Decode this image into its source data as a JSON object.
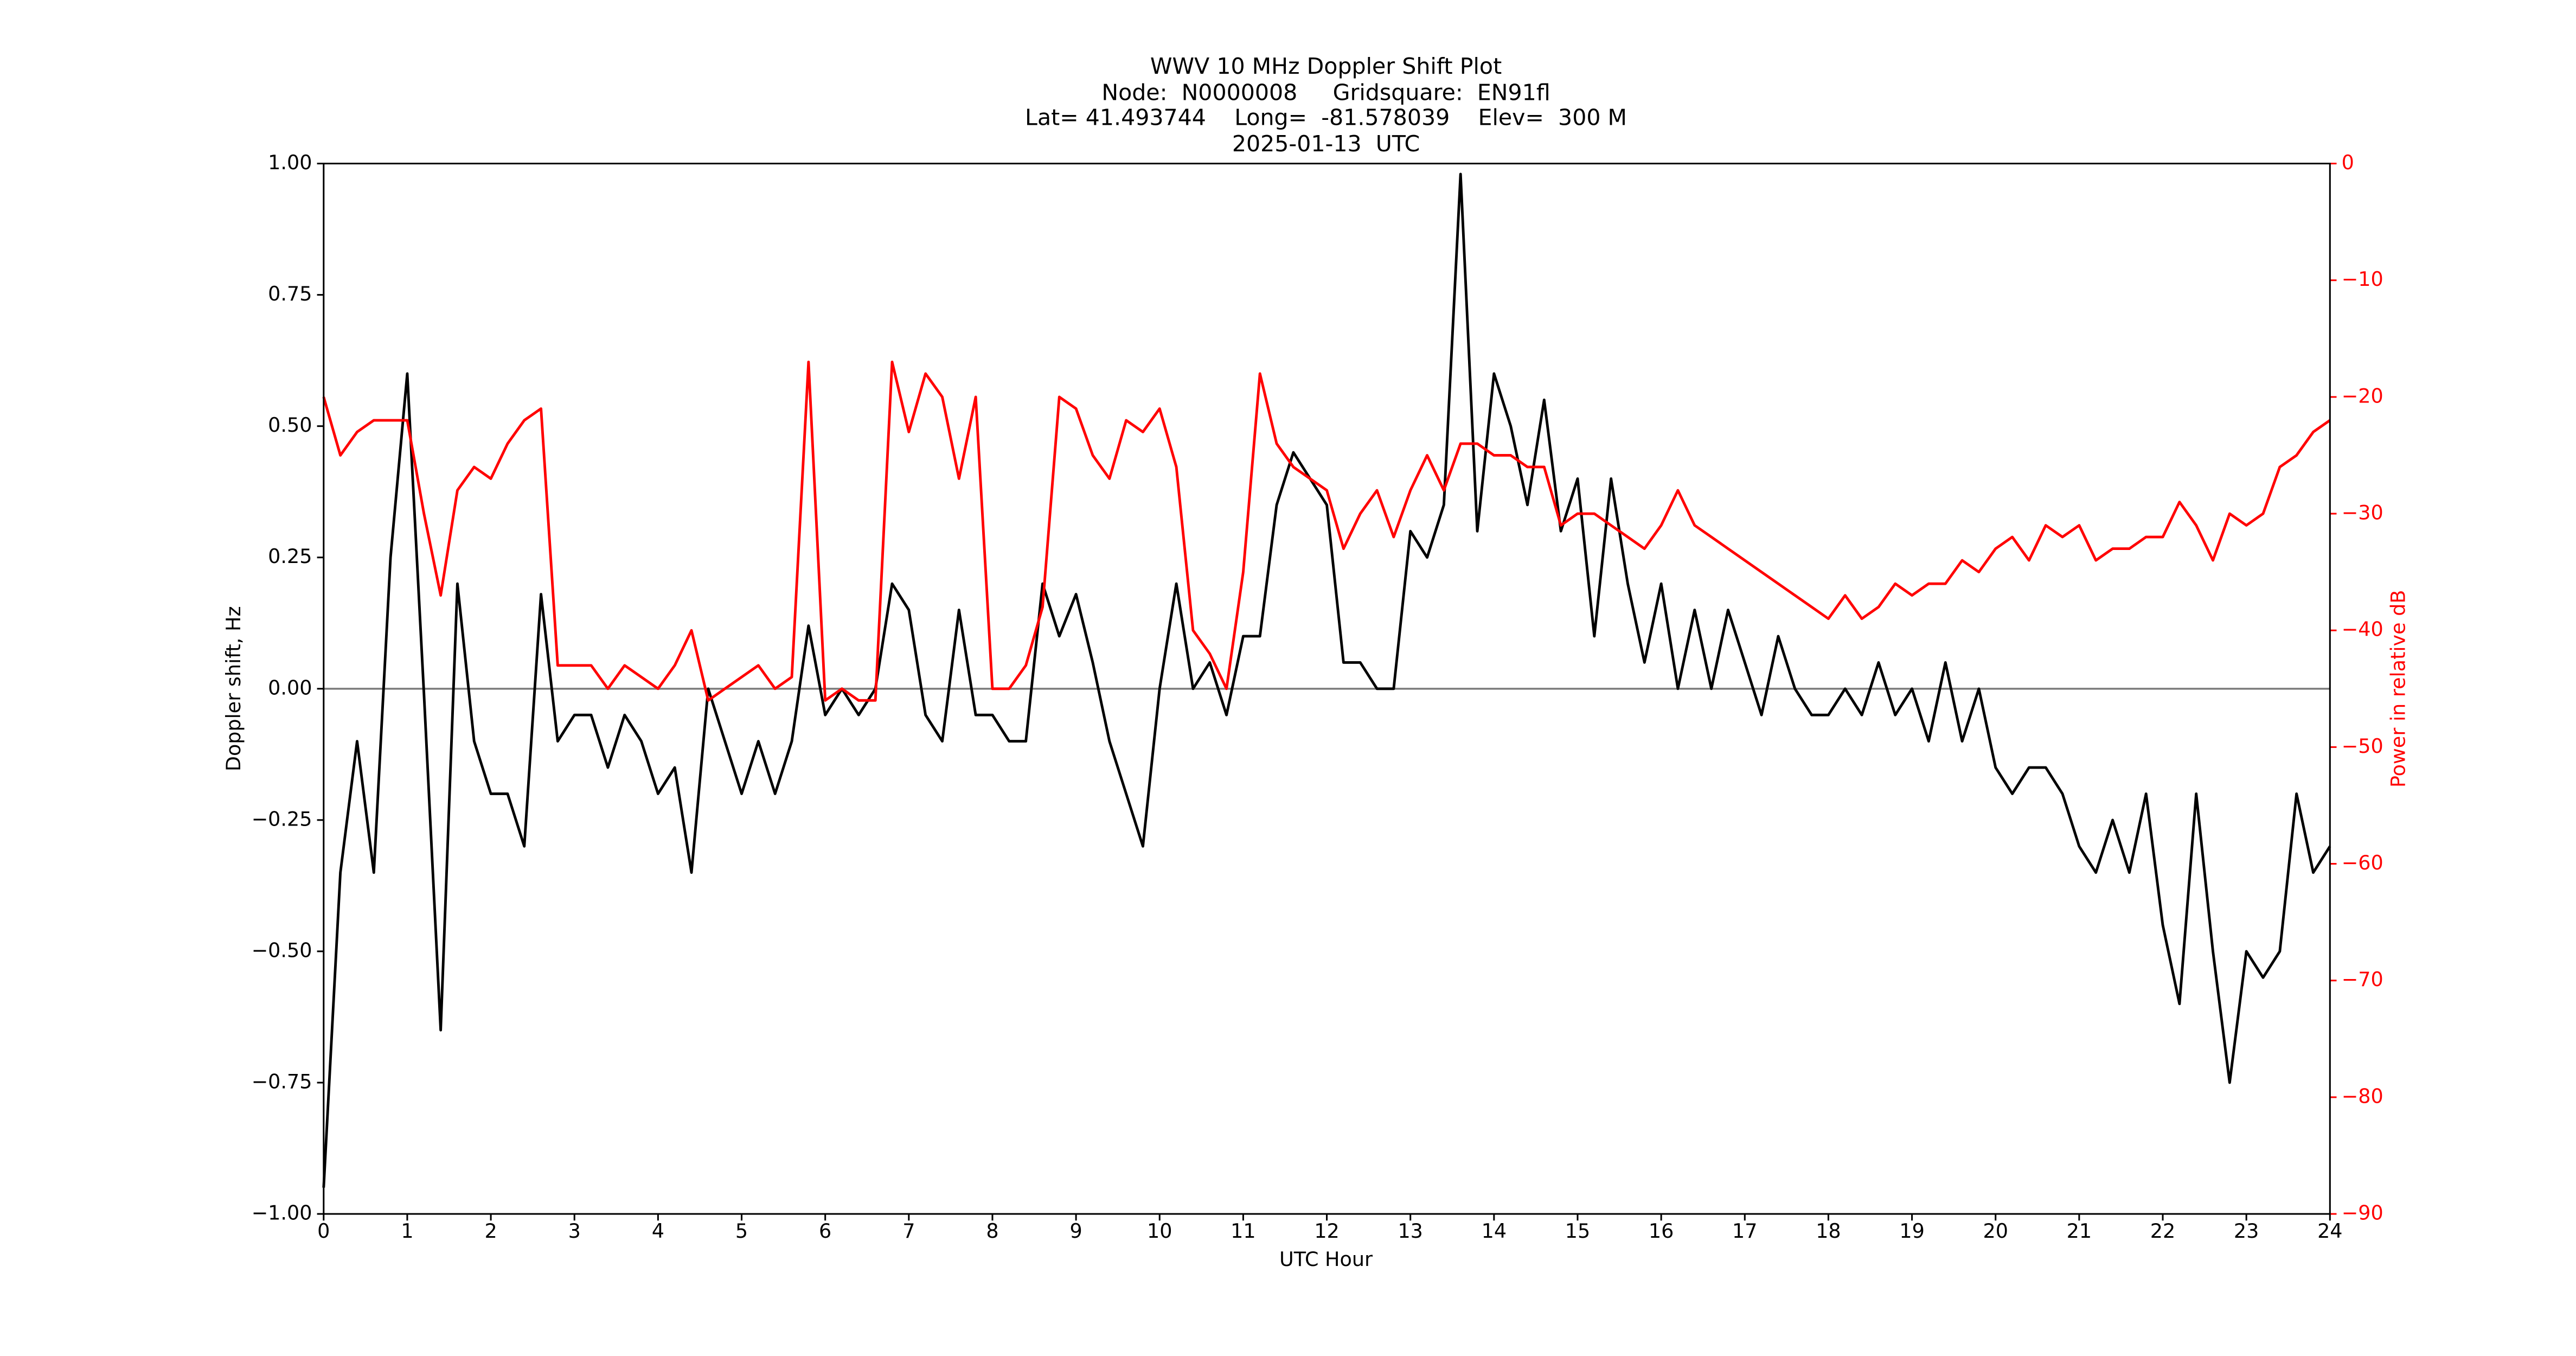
{
  "chart_data": {
    "type": "line",
    "title": [
      "WWV 10 MHz Doppler Shift Plot",
      "Node:  N0000008     Gridsquare:  EN91fl",
      "Lat= 41.493744    Long=  -81.578039    Elev=  300 M",
      "2025-01-13  UTC"
    ],
    "x_label": "UTC Hour",
    "y_label": "Doppler shift, Hz",
    "y2_label": "Power in relative dB",
    "x": [
      0,
      0.2,
      0.4,
      0.6,
      0.8,
      1,
      1.2,
      1.4,
      1.6,
      1.8,
      2,
      2.2,
      2.4,
      2.6,
      2.8,
      3,
      3.2,
      3.4,
      3.6,
      3.8,
      4,
      4.2,
      4.4,
      4.6,
      4.8,
      5,
      5.2,
      5.4,
      5.6,
      5.8,
      6,
      6.2,
      6.4,
      6.6,
      6.8,
      7,
      7.2,
      7.4,
      7.6,
      7.8,
      8,
      8.2,
      8.4,
      8.6,
      8.8,
      9,
      9.2,
      9.4,
      9.6,
      9.8,
      10,
      10.2,
      10.4,
      10.6,
      10.8,
      11,
      11.2,
      11.4,
      11.6,
      11.8,
      12,
      12.2,
      12.4,
      12.6,
      12.8,
      13,
      13.2,
      13.4,
      13.6,
      13.8,
      14,
      14.2,
      14.4,
      14.6,
      14.8,
      15,
      15.2,
      15.4,
      15.6,
      15.8,
      16,
      16.2,
      16.4,
      16.6,
      16.8,
      17,
      17.2,
      17.4,
      17.6,
      17.8,
      18,
      18.2,
      18.4,
      18.6,
      18.8,
      19,
      19.2,
      19.4,
      19.6,
      19.8,
      20,
      20.2,
      20.4,
      20.6,
      20.8,
      21,
      21.2,
      21.4,
      21.6,
      21.8,
      22,
      22.2,
      22.4,
      22.6,
      22.8,
      23,
      23.2,
      23.4,
      23.6,
      23.8,
      24
    ],
    "series": [
      {
        "name": "Doppler shift",
        "color": "#000000",
        "values": [
          -0.95,
          -0.35,
          -0.1,
          -0.35,
          0.25,
          0.6,
          -0.01,
          -0.65,
          0.2,
          -0.1,
          -0.2,
          -0.2,
          -0.3,
          0.18,
          -0.1,
          -0.05,
          -0.05,
          -0.15,
          -0.05,
          -0.1,
          -0.2,
          -0.15,
          -0.35,
          0.0,
          -0.1,
          -0.2,
          -0.1,
          -0.2,
          -0.1,
          0.12,
          -0.05,
          0.0,
          -0.05,
          0.0,
          0.2,
          0.15,
          -0.05,
          -0.1,
          0.15,
          -0.05,
          -0.05,
          -0.1,
          -0.1,
          0.2,
          0.1,
          0.18,
          0.05,
          -0.1,
          -0.2,
          -0.3,
          0.0,
          0.2,
          0.0,
          0.05,
          -0.05,
          0.1,
          0.1,
          0.35,
          0.45,
          0.4,
          0.35,
          0.05,
          0.05,
          0.0,
          0.0,
          0.3,
          0.25,
          0.35,
          0.98,
          0.3,
          0.6,
          0.5,
          0.35,
          0.55,
          0.3,
          0.4,
          0.1,
          0.4,
          0.2,
          0.05,
          0.2,
          0.0,
          0.15,
          0.0,
          0.15,
          0.05,
          -0.05,
          0.1,
          0.0,
          -0.05,
          -0.05,
          0.0,
          -0.05,
          0.05,
          -0.05,
          0.0,
          -0.1,
          0.05,
          -0.1,
          0.0,
          -0.15,
          -0.2,
          -0.15,
          -0.15,
          -0.2,
          -0.3,
          -0.35,
          -0.25,
          -0.35,
          -0.2,
          -0.45,
          -0.6,
          -0.2,
          -0.5,
          -0.75,
          -0.5,
          -0.55,
          -0.5,
          -0.2,
          -0.35,
          -0.3
        ]
      },
      {
        "name": "Power",
        "color": "#ff0000",
        "axis": "y2",
        "values": [
          -20,
          -25,
          -23,
          -22,
          -22,
          -22,
          -30,
          -37,
          -28,
          -26,
          -27,
          -24,
          -22,
          -21,
          -43,
          -43,
          -43,
          -45,
          -43,
          -44,
          -45,
          -43,
          -40,
          -46,
          -45,
          -44,
          -43,
          -45,
          -44,
          -17,
          -46,
          -45,
          -46,
          -46,
          -17,
          -23,
          -18,
          -20,
          -27,
          -20,
          -45,
          -45,
          -43,
          -38,
          -20,
          -21,
          -25,
          -27,
          -22,
          -23,
          -21,
          -26,
          -40,
          -42,
          -45,
          -35,
          -18,
          -24,
          -26,
          -27,
          -28,
          -33,
          -30,
          -28,
          -32,
          -28,
          -25,
          -28,
          -24,
          -24,
          -25,
          -25,
          -26,
          -26,
          -31,
          -30,
          -30,
          -31,
          -32,
          -33,
          -31,
          -28,
          -31,
          -32,
          -33,
          -34,
          -35,
          -36,
          -37,
          -38,
          -39,
          -37,
          -39,
          -38,
          -36,
          -37,
          -36,
          -36,
          -34,
          -35,
          -33,
          -32,
          -34,
          -31,
          -32,
          -31,
          -34,
          -33,
          -33,
          -32,
          -32,
          -29,
          -31,
          -34,
          -30,
          -31,
          -30,
          -26,
          -25,
          -23,
          -22
        ]
      }
    ],
    "reference_line": 0,
    "reference_color": "#808080",
    "xlim": [
      0,
      24
    ],
    "xticks": [
      0,
      1,
      2,
      3,
      4,
      5,
      6,
      7,
      8,
      9,
      10,
      11,
      12,
      13,
      14,
      15,
      16,
      17,
      18,
      19,
      20,
      21,
      22,
      23,
      24
    ],
    "ylim": [
      -1,
      1
    ],
    "yticks": [
      {
        "value": -1,
        "label": "−1.00"
      },
      {
        "value": -0.75,
        "label": "−0.75"
      },
      {
        "value": -0.5,
        "label": "−0.50"
      },
      {
        "value": -0.25,
        "label": "−0.25"
      },
      {
        "value": 0,
        "label": "0.00"
      },
      {
        "value": 0.25,
        "label": "0.25"
      },
      {
        "value": 0.5,
        "label": "0.50"
      },
      {
        "value": 0.75,
        "label": "0.75"
      },
      {
        "value": 1,
        "label": "1.00"
      }
    ],
    "y2lim": [
      -90,
      0
    ],
    "y2ticks": [
      {
        "value": -90,
        "label": "−90"
      },
      {
        "value": -80,
        "label": "−80"
      },
      {
        "value": -70,
        "label": "−70"
      },
      {
        "value": -60,
        "label": "−60"
      },
      {
        "value": -50,
        "label": "−50"
      },
      {
        "value": -40,
        "label": "−40"
      },
      {
        "value": -30,
        "label": "−30"
      },
      {
        "value": -20,
        "label": "−20"
      },
      {
        "value": -10,
        "label": "−10"
      },
      0
    ]
  }
}
